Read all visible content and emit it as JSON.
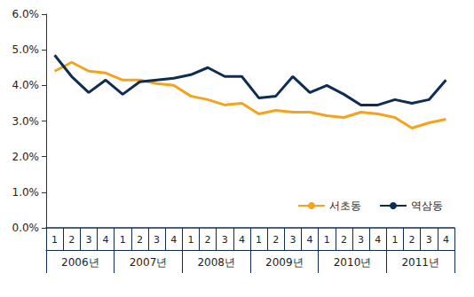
{
  "chart_data": {
    "type": "line",
    "categories": [
      "1",
      "2",
      "3",
      "4",
      "1",
      "2",
      "3",
      "4",
      "1",
      "2",
      "3",
      "4",
      "1",
      "2",
      "3",
      "4",
      "1",
      "2",
      "3",
      "4",
      "1",
      "2",
      "3",
      "4"
    ],
    "year_labels": [
      "2006년",
      "2007년",
      "2008년",
      "2009년",
      "2010년",
      "2011년"
    ],
    "series": [
      {
        "name": "서초동",
        "color": "#f5a31c",
        "values": [
          4.4,
          4.65,
          4.4,
          4.35,
          4.15,
          4.15,
          4.05,
          4.0,
          3.7,
          3.6,
          3.45,
          3.5,
          3.2,
          3.3,
          3.25,
          3.25,
          3.15,
          3.1,
          3.25,
          3.2,
          3.1,
          2.8,
          2.95,
          3.05
        ]
      },
      {
        "name": "역삼동",
        "color": "#0f2d52",
        "values": [
          4.85,
          4.25,
          3.8,
          4.15,
          3.75,
          4.1,
          4.15,
          4.2,
          4.3,
          4.5,
          4.25,
          4.25,
          3.65,
          3.7,
          4.25,
          3.8,
          4.0,
          3.75,
          3.45,
          3.45,
          3.6,
          3.5,
          3.6,
          4.15
        ]
      }
    ],
    "ylim": [
      0,
      6
    ],
    "yticks": [
      {
        "value": 0,
        "label": "0.0%"
      },
      {
        "value": 1,
        "label": "1.0%"
      },
      {
        "value": 2,
        "label": "2.0%"
      },
      {
        "value": 3,
        "label": "3.0%"
      },
      {
        "value": 4,
        "label": "4.0%"
      },
      {
        "value": 5,
        "label": "5.0%"
      },
      {
        "value": 6,
        "label": "6.0%"
      }
    ],
    "grid": false,
    "legend": "lower right"
  }
}
